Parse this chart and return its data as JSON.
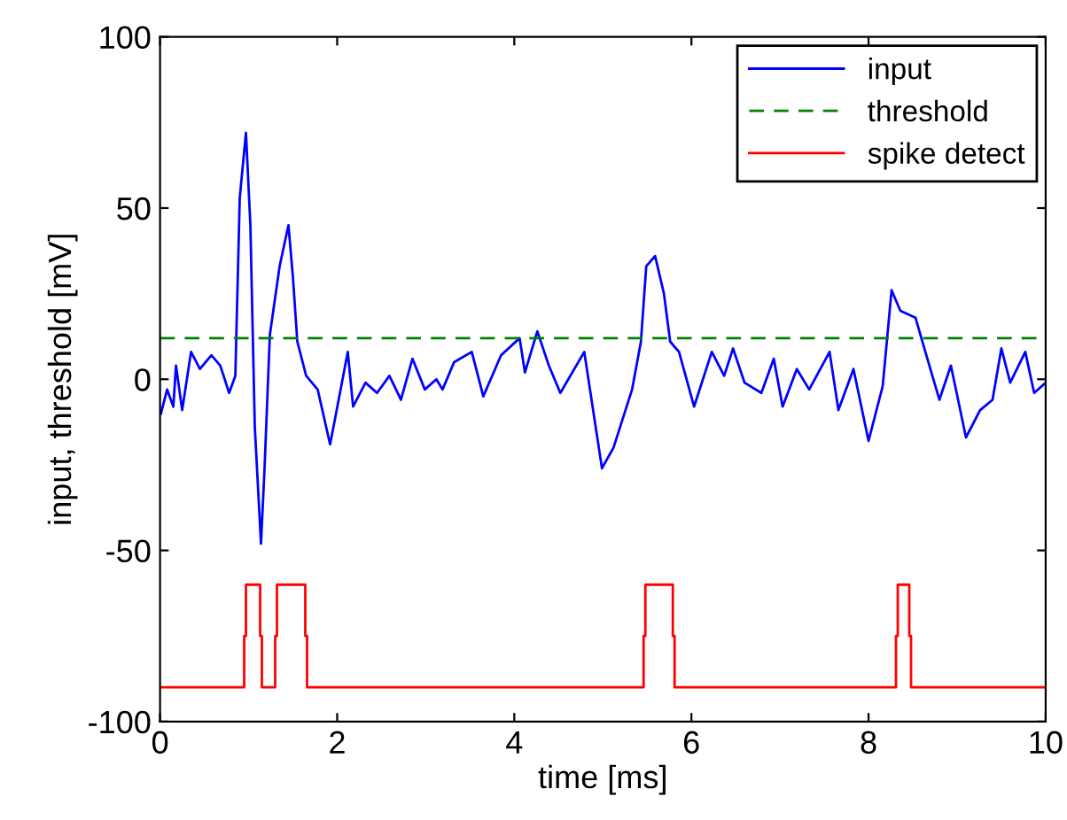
{
  "chart_data": {
    "type": "line",
    "xlabel": "time [ms]",
    "ylabel": "input, threshold [mV]",
    "xlim": [
      0,
      10
    ],
    "ylim": [
      -100,
      100
    ],
    "xticks": [
      0,
      2,
      4,
      6,
      8,
      10
    ],
    "yticks": [
      -100,
      -50,
      0,
      50,
      100
    ],
    "grid": false,
    "legend": "top right",
    "marker": "none",
    "series": [
      {
        "name": "input",
        "color": "#0000ff",
        "line_style": "solid",
        "x": [
          0.01,
          0.08,
          0.15,
          0.18,
          0.25,
          0.35,
          0.45,
          0.58,
          0.68,
          0.78,
          0.85,
          0.9,
          0.97,
          1.02,
          1.07,
          1.14,
          1.18,
          1.24,
          1.35,
          1.45,
          1.5,
          1.55,
          1.65,
          1.78,
          1.92,
          1.98,
          2.12,
          2.18,
          2.32,
          2.45,
          2.59,
          2.72,
          2.85,
          2.99,
          3.12,
          3.19,
          3.32,
          3.52,
          3.65,
          3.85,
          4.06,
          4.12,
          4.26,
          4.39,
          4.52,
          4.79,
          4.99,
          5.12,
          5.33,
          5.43,
          5.49,
          5.59,
          5.69,
          5.76,
          5.86,
          6.03,
          6.23,
          6.37,
          6.47,
          6.6,
          6.79,
          6.93,
          7.03,
          7.19,
          7.33,
          7.56,
          7.66,
          7.83,
          8.0,
          8.16,
          8.26,
          8.36,
          8.53,
          8.63,
          8.8,
          8.93,
          9.1,
          9.26,
          9.4,
          9.5,
          9.6,
          9.77,
          9.87,
          10.0
        ],
        "values": [
          -10,
          -3,
          -8,
          4,
          -9,
          8,
          3,
          7,
          4,
          -4,
          1,
          53,
          72,
          45,
          -14,
          -48,
          -26,
          13,
          33,
          45,
          30,
          11,
          1,
          -3,
          -19,
          -11,
          8,
          -8,
          -1,
          -4,
          1,
          -6,
          6,
          -3,
          0,
          -3,
          5,
          8,
          -5,
          7,
          12,
          2,
          14,
          4,
          -4,
          8,
          -26,
          -20,
          -3,
          11,
          33,
          36,
          25,
          11,
          8,
          -8,
          8,
          1,
          9,
          -1,
          -4,
          6,
          -8,
          3,
          -3,
          8,
          -9,
          3,
          -18,
          -2,
          26,
          20,
          18,
          9,
          -6,
          4,
          -17,
          -9,
          -6,
          9,
          -1,
          8,
          -4,
          -1
        ]
      },
      {
        "name": "threshold",
        "color": "#008000",
        "line_style": "dashed",
        "x": [
          0,
          10
        ],
        "values": [
          12,
          12
        ]
      },
      {
        "name": "spike detect",
        "color": "#ff0000",
        "line_style": "solid",
        "x": [
          0,
          0.95,
          0.95,
          0.97,
          0.97,
          1.13,
          1.13,
          1.15,
          1.15,
          1.3,
          1.3,
          1.32,
          1.32,
          1.64,
          1.64,
          1.66,
          1.66,
          5.46,
          5.46,
          5.48,
          5.48,
          5.79,
          5.79,
          5.81,
          5.81,
          8.31,
          8.31,
          8.33,
          8.33,
          8.46,
          8.46,
          8.48,
          8.48,
          10
        ],
        "values": [
          -90,
          -90,
          -75,
          -75,
          -60,
          -60,
          -75,
          -75,
          -90,
          -90,
          -75,
          -75,
          -60,
          -60,
          -75,
          -75,
          -90,
          -90,
          -75,
          -75,
          -60,
          -60,
          -75,
          -75,
          -90,
          -90,
          -75,
          -75,
          -60,
          -60,
          -75,
          -75,
          -90,
          -90
        ]
      }
    ]
  }
}
